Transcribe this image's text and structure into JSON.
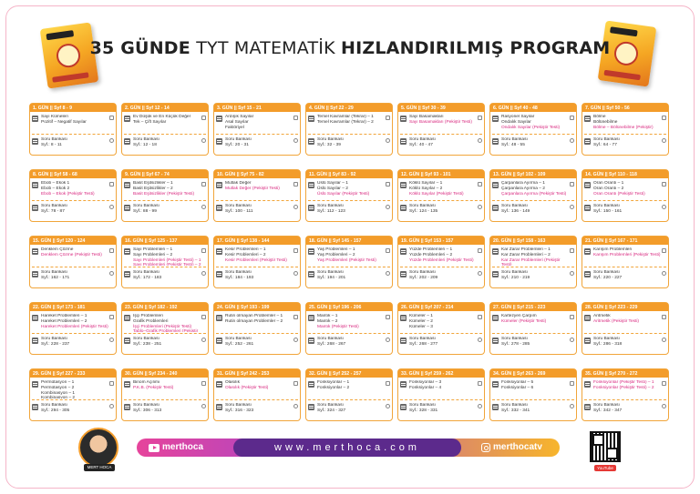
{
  "title": {
    "part1": "35 GÜNDE",
    "part2": "TYT MATEMATİK",
    "part3": "HIZLANDIRILMIŞ PROGRAM"
  },
  "bank_label": "Soru Bankası",
  "days": [
    {
      "header": "1. GÜN || Syf 8 - 9",
      "topics": [
        "Sayı Kümeleri",
        "Pozitif – Negatif Sayılar"
      ],
      "pink": [],
      "bank_pages": "Syf.: 8 - 11"
    },
    {
      "header": "2. GÜN || Syf 12 - 14",
      "topics": [
        "Ev Düşük ve En Küçük Değer",
        "Tek – Çift Sayılar"
      ],
      "pink": [],
      "bank_pages": "Syf.: 12 - 18"
    },
    {
      "header": "3. GÜN || Syf 15 - 21",
      "topics": [
        "Ardışık Sayılar",
        "Asal Sayılar",
        "Faktöriyel"
      ],
      "pink": [],
      "bank_pages": "Syf.: 20 - 31"
    },
    {
      "header": "4. GÜN || Syf 22 - 29",
      "topics": [
        "Temel Kavramlar (Tekrar) – 1",
        "Temel Kavramlar (Tekrar) – 2"
      ],
      "pink": [],
      "bank_pages": "Syf.: 32 - 39"
    },
    {
      "header": "5. GÜN || Syf 30 - 39",
      "topics": [
        "Sayı Basamakları"
      ],
      "pink": [
        "Sayı Basamakları (Pekiştir Testi)"
      ],
      "bank_pages": "Syf.: 40 - 47"
    },
    {
      "header": "6. GÜN || Syf 40 - 48",
      "topics": [
        "Rasyonel Sayılar",
        "Ondalık Sayılar"
      ],
      "pink": [
        "Ondalık Sayılar (Pekiştir Testi)"
      ],
      "bank_pages": "Syf.: 48 - 55"
    },
    {
      "header": "7. GÜN || Syf 50 - 56",
      "topics": [
        "Bölme",
        "Bölünebilme"
      ],
      "pink": [
        "Bölme – Bölünebilme (Pekiştir)"
      ],
      "bank_pages": "Syf.: 64 - 77"
    },
    {
      "header": "8. GÜN || Syf 58 - 68",
      "topics": [
        "Ebob – Ekok 1",
        "Ebob – Ekok 2"
      ],
      "pink": [
        "Ebob – Ekok (Pekiştir Testi)"
      ],
      "bank_pages": "Syf.: 78 - 87"
    },
    {
      "header": "9. GÜN || Syf 67 - 74",
      "topics": [
        "Basit Eşitsizlikler – 1",
        "Basit Eşitsizlikler – 2"
      ],
      "pink": [
        "Basit Eşitsizlikler (Pekiştir Testi)"
      ],
      "bank_pages": "Syf.: 88 - 99"
    },
    {
      "header": "10. GÜN || Syf 75 - 82",
      "topics": [
        "Mutlak Değer"
      ],
      "pink": [
        "Mutlak Değer (Pekiştir Testi)"
      ],
      "bank_pages": "Syf.: 100 - 111"
    },
    {
      "header": "11. GÜN || Syf 83 - 92",
      "topics": [
        "Üslü Sayılar – 1",
        "Üslü Sayılar – 2"
      ],
      "pink": [
        "Üslü Sayılar (Pekiştir Testi)"
      ],
      "bank_pages": "Syf.: 112 - 123"
    },
    {
      "header": "12. GÜN || Syf 93 - 101",
      "topics": [
        "Köklü Sayılar – 1",
        "Köklü Sayılar – 2"
      ],
      "pink": [
        "Köklü Sayılar (Pekiştir Testi)"
      ],
      "bank_pages": "Syf.: 124 - 135"
    },
    {
      "header": "13. GÜN || Syf 102 - 109",
      "topics": [
        "Çarpanlara Ayırma – 1",
        "Çarpanlara Ayırma – 2"
      ],
      "pink": [
        "Çarpanlara Ayırma (Pekiştir Testi)"
      ],
      "bank_pages": "Syf.: 136 - 149"
    },
    {
      "header": "14. GÜN || Syf 110 - 118",
      "topics": [
        "Oran Orantı – 1",
        "Oran Orantı – 2"
      ],
      "pink": [
        "Oran Orantı (Pekiştir Testi)"
      ],
      "bank_pages": "Syf.: 150 - 161"
    },
    {
      "header": "15. GÜN || Syf 120 - 124",
      "topics": [
        "Denklem Çözme"
      ],
      "pink": [
        "Denklem Çözme (Pekiştir Testi)"
      ],
      "bank_pages": "Syf.: 162 - 171"
    },
    {
      "header": "16. GÜN || Syf 125 - 137",
      "topics": [
        "Sayı Problemleri – 1",
        "Sayı Problemleri – 2"
      ],
      "pink": [
        "Sayı Problemleri (Pekiştir Testi) – 1",
        "Sayı Problemleri (Pekiştir Testi) – 2"
      ],
      "bank_pages": "Syf.: 172 - 183"
    },
    {
      "header": "17. GÜN || Syf 138 - 144",
      "topics": [
        "Kesir Problemleri – 1",
        "Kesir Problemleri – 2"
      ],
      "pink": [
        "Kesir Problemleri (Pekiştir Testi)"
      ],
      "bank_pages": "Syf.: 184 - 193"
    },
    {
      "header": "18. GÜN || Syf 145 - 157",
      "topics": [
        "Yaş Problemleri – 1",
        "Yaş Problemleri – 2"
      ],
      "pink": [
        "Yaş Problemleri (Pekiştir Testi)"
      ],
      "bank_pages": "Syf.: 194 - 201"
    },
    {
      "header": "19. GÜN || Syf 153 - 157",
      "topics": [
        "Yüzde Problemleri – 1",
        "Yüzde Problemleri – 2"
      ],
      "pink": [
        "Yüzde Problemleri (Pekiştir Testi)"
      ],
      "bank_pages": "Syf.: 202 - 209"
    },
    {
      "header": "20. GÜN || Syf 158 - 163",
      "topics": [
        "Kar Zarar Problemleri – 1",
        "Kar Zarar Problemleri – 2"
      ],
      "pink": [
        "Kar Zarar Problemleri (Pekiştir Testi)"
      ],
      "bank_pages": "Syf.: 210 - 219"
    },
    {
      "header": "21. GÜN || Syf 167 - 171",
      "topics": [
        "Karışım Problemleri"
      ],
      "pink": [
        "Karışım Problemleri (Pekiştir Testi)"
      ],
      "bank_pages": "Syf.: 220 - 227"
    },
    {
      "header": "22. GÜN || Syf 173 - 181",
      "topics": [
        "Hareket Problemleri – 1",
        "Hareket Problemleri – 2"
      ],
      "pink": [
        "Hareket Problemleri (Pekiştir Testi)"
      ],
      "bank_pages": "Syf.: 228 - 237"
    },
    {
      "header": "23. GÜN || Syf 182 - 192",
      "topics": [
        "İşçi Problemleri",
        "Grafik Problemleri"
      ],
      "pink": [
        "İşçi Problemleri (Pekiştir Testi)",
        "Tablo–Grafik Problemleri (Pekiştir Testi)"
      ],
      "bank_pages": "Syf.: 238 - 251"
    },
    {
      "header": "24. GÜN || Syf 193 - 199",
      "topics": [
        "Rutin olmayan Problemler – 1",
        "Rutin olmayan Problemler – 2"
      ],
      "pink": [],
      "bank_pages": "Syf.: 252 - 261"
    },
    {
      "header": "25. GÜN || Syf 196 - 206",
      "topics": [
        "Mantık – 1",
        "Mantık – 2"
      ],
      "pink": [
        "Mantık (Pekiştir Testi)"
      ],
      "bank_pages": "Syf.: 268 - 267"
    },
    {
      "header": "26. GÜN || Syf 207 - 214",
      "topics": [
        "Kümeler – 1",
        "Kümeler – 2",
        "Kümeler – 3"
      ],
      "pink": [],
      "bank_pages": "Syf.: 268 - 277"
    },
    {
      "header": "27. GÜN || Syf 215 - 223",
      "topics": [
        "Kartezyen Çarpım"
      ],
      "pink": [
        "Kümeler (Pekiştir Testi)"
      ],
      "bank_pages": "Syf.: 278 - 285"
    },
    {
      "header": "28. GÜN || Syf 223 - 229",
      "topics": [
        "Aritmetik"
      ],
      "pink": [
        "Aritmetik (Pekiştir Testi)"
      ],
      "bank_pages": "Syf.: 286 - 318"
    },
    {
      "header": "29. GÜN || Syf 227 - 233",
      "topics": [
        "Permütasyon – 1",
        "Permütasyon – 2",
        "Kombinasyon – 1",
        "Kombinasyon – 2"
      ],
      "pink": [],
      "bank_pages": "Syf.: 294 - 305"
    },
    {
      "header": "30. GÜN || Syf 234 - 240",
      "topics": [
        "Binom Açılımı"
      ],
      "pink": [
        "P.K.B. (Pekiştir Testi)"
      ],
      "bank_pages": "Syf.: 306 - 313"
    },
    {
      "header": "31. GÜN || Syf 242 - 253",
      "topics": [
        "Olasılık"
      ],
      "pink": [
        "Olasılık (Pekiştir Testi)"
      ],
      "bank_pages": "Syf.: 316 - 323"
    },
    {
      "header": "32. GÜN || Syf 252 - 257",
      "topics": [
        "Fonksiyonlar – 1",
        "Fonksiyonlar – 2"
      ],
      "pink": [],
      "bank_pages": "Syf.: 324 - 327"
    },
    {
      "header": "33. GÜN || Syf 259 - 262",
      "topics": [
        "Fonksiyonlar – 3",
        "Fonksiyonlar – 4"
      ],
      "pink": [],
      "bank_pages": "Syf.: 328 - 331"
    },
    {
      "header": "34. GÜN || Syf 263 - 269",
      "topics": [
        "Fonksiyonlar – 5",
        "Fonksiyonlar – 6"
      ],
      "pink": [],
      "bank_pages": "Syf.: 332 - 341"
    },
    {
      "header": "35. GÜN || Syf 270 - 272",
      "topics": [],
      "pink": [
        "Fonksiyonlar (Pekiştir Testi) – 1",
        "Fonksiyonlar (Pekiştir Testi) – 2"
      ],
      "bank_pages": "Syf.: 342 - 347"
    }
  ],
  "footer": {
    "youtube": "merthoca",
    "website": "www.merthoca.com",
    "instagram": "merthocatv",
    "avatar_tag": "MERT HOCA",
    "qr_tag": "YouTube"
  },
  "colors": {
    "card_border": "#f1a53a",
    "card_header": "#f39c2a",
    "pink_text": "#d8267e",
    "website_pill": "#5c2a8c"
  }
}
